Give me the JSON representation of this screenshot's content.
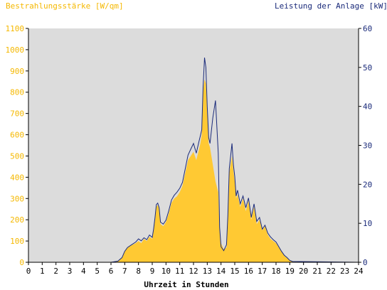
{
  "header": {
    "left_title": "Bestrahlungsstärke [W/qm]",
    "right_title": "Leistung der Anlage [kW]"
  },
  "colors": {
    "plot_background": "#dcdcdc",
    "irradiance_fill": "#ffc933",
    "power_line": "#1a2a7a",
    "left_axis_text": "#f5b800",
    "right_axis_text": "#1a2a7a",
    "x_axis_text": "#000000"
  },
  "chart_data": {
    "type": "area",
    "title": "",
    "xlabel": "Uhrzeit in Stunden",
    "x_ticks": [
      "0",
      "1",
      "2",
      "3",
      "4",
      "5",
      "6",
      "7",
      "8",
      "9",
      "10",
      "11",
      "12",
      "13",
      "14",
      "15",
      "16",
      "17",
      "18",
      "19",
      "20",
      "21",
      "22",
      "23",
      "24"
    ],
    "xlim": [
      0,
      24
    ],
    "y_left": {
      "label": "Bestrahlungsstärke [W/qm]",
      "lim": [
        0,
        1100
      ],
      "ticks": [
        "0",
        "100",
        "200",
        "300",
        "400",
        "500",
        "600",
        "700",
        "800",
        "900",
        "1000",
        "1100"
      ]
    },
    "y_right": {
      "label": "Leistung der Anlage [kW]",
      "lim": [
        0,
        60
      ],
      "ticks": [
        "0",
        "10",
        "20",
        "30",
        "40",
        "50",
        "60"
      ]
    },
    "grid": false,
    "series": [
      {
        "name": "Bestrahlungsstärke [W/qm]",
        "axis": "left",
        "style": "area",
        "x": [
          0,
          6,
          6.5,
          6.8,
          7.0,
          7.2,
          7.5,
          7.8,
          8.0,
          8.2,
          8.4,
          8.6,
          8.8,
          9.0,
          9.1,
          9.2,
          9.3,
          9.4,
          9.5,
          9.6,
          9.8,
          10.0,
          10.2,
          10.4,
          10.6,
          10.8,
          11.0,
          11.2,
          11.4,
          11.6,
          11.8,
          12.0,
          12.2,
          12.4,
          12.5,
          12.6,
          12.7,
          12.8,
          12.9,
          13.0,
          13.1,
          13.2,
          13.4,
          13.6,
          13.8,
          13.9,
          14.0,
          14.2,
          14.4,
          14.5,
          14.6,
          14.8,
          14.9,
          15.0,
          15.1,
          15.2,
          15.4,
          15.6,
          15.8,
          16.0,
          16.2,
          16.4,
          16.6,
          16.8,
          17.0,
          17.2,
          17.4,
          17.6,
          17.8,
          18.0,
          18.2,
          18.4,
          18.6,
          18.8,
          19.0,
          19.2,
          24
        ],
        "y": [
          0,
          0,
          5,
          20,
          50,
          70,
          80,
          90,
          100,
          90,
          110,
          100,
          120,
          110,
          150,
          200,
          260,
          270,
          250,
          180,
          170,
          190,
          230,
          280,
          300,
          310,
          330,
          360,
          420,
          480,
          500,
          520,
          480,
          530,
          560,
          600,
          800,
          860,
          840,
          700,
          560,
          540,
          460,
          380,
          330,
          150,
          90,
          60,
          70,
          200,
          420,
          500,
          430,
          380,
          300,
          320,
          260,
          300,
          240,
          290,
          200,
          260,
          180,
          200,
          150,
          170,
          130,
          110,
          100,
          90,
          70,
          50,
          30,
          20,
          10,
          5,
          0
        ]
      },
      {
        "name": "Leistung der Anlage [kW]",
        "axis": "right",
        "style": "line",
        "x": [
          0,
          6,
          6.5,
          6.8,
          7.0,
          7.2,
          7.5,
          7.8,
          8.0,
          8.2,
          8.4,
          8.6,
          8.8,
          9.0,
          9.1,
          9.2,
          9.3,
          9.4,
          9.5,
          9.6,
          9.8,
          10.0,
          10.2,
          10.4,
          10.6,
          10.8,
          11.0,
          11.2,
          11.4,
          11.6,
          11.8,
          12.0,
          12.2,
          12.4,
          12.5,
          12.6,
          12.7,
          12.8,
          12.9,
          13.0,
          13.1,
          13.2,
          13.4,
          13.6,
          13.8,
          13.9,
          14.0,
          14.2,
          14.4,
          14.5,
          14.6,
          14.8,
          14.9,
          15.0,
          15.1,
          15.2,
          15.4,
          15.6,
          15.8,
          16.0,
          16.2,
          16.4,
          16.6,
          16.8,
          17.0,
          17.2,
          17.4,
          17.6,
          17.8,
          18.0,
          18.2,
          18.4,
          18.6,
          18.8,
          19.0,
          19.2,
          24
        ],
        "y": [
          0,
          0,
          0.3,
          1.2,
          2.8,
          3.8,
          4.5,
          5.2,
          6,
          5.5,
          6.3,
          5.8,
          7,
          6.4,
          8.5,
          11.5,
          14.8,
          15.2,
          14,
          10.3,
          9.8,
          10.8,
          13.2,
          16,
          17.2,
          18,
          19,
          20.5,
          24,
          27.5,
          29,
          30.5,
          28,
          31,
          32.5,
          34,
          45,
          52.5,
          50,
          40,
          32,
          30.5,
          37,
          41.5,
          28,
          9,
          4,
          3,
          4.5,
          12,
          24,
          30.5,
          25,
          22,
          17,
          18.5,
          15,
          17,
          14,
          16.5,
          11.5,
          15,
          10.5,
          11.5,
          8.5,
          9.5,
          7.5,
          6.5,
          5.8,
          5.2,
          4,
          2.8,
          1.8,
          1.2,
          0.5,
          0.2,
          0
        ]
      }
    ]
  }
}
